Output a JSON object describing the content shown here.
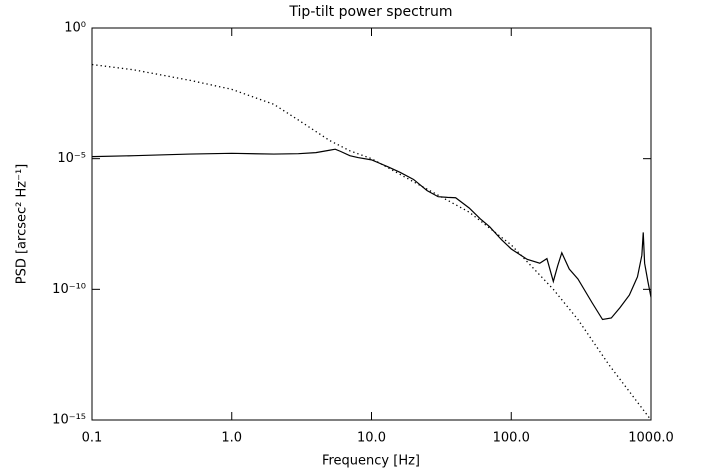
{
  "chart_data": {
    "type": "line",
    "title": "Tip-tilt power spectrum",
    "xlabel": "Frequency [Hz]",
    "ylabel": "PSD [arcsec² Hz⁻¹]",
    "xscale": "log",
    "yscale": "log",
    "xlim": [
      0.1,
      1000
    ],
    "ylim": [
      1e-15,
      1
    ],
    "xticks": [
      0.1,
      {
        "value": 1,
        "label": "1.0"
      },
      {
        "value": 10,
        "label": "10.0"
      },
      {
        "value": 100,
        "label": "100.0"
      },
      {
        "value": 1000,
        "label": "1000.0"
      }
    ],
    "yticks": [
      {
        "value": 1e-15,
        "label": "10⁻¹⁵"
      },
      {
        "value": 1e-10,
        "label": "10⁻¹⁰"
      },
      {
        "value": 1e-05,
        "label": "10⁻⁵"
      },
      {
        "value": 1,
        "label": "10⁰"
      }
    ],
    "series": [
      {
        "color": "#000000",
        "style": "solid",
        "x": [
          0.1,
          0.2,
          0.5,
          1,
          2,
          3,
          4,
          5,
          5.5,
          6,
          7,
          8,
          10,
          13,
          16,
          20,
          25,
          30,
          35,
          40,
          50,
          60,
          70,
          85,
          100,
          130,
          160,
          180,
          200,
          215,
          230,
          260,
          300,
          380,
          450,
          520,
          600,
          700,
          800,
          860,
          880,
          900,
          950,
          1000
        ],
        "values": [
          1.2e-05,
          1.3e-05,
          1.5e-05,
          1.6e-05,
          1.5e-05,
          1.55e-05,
          1.7e-05,
          2.1e-05,
          2.3e-05,
          1.9e-05,
          1.3e-05,
          1.1e-05,
          9e-06,
          5e-06,
          3e-06,
          1.6e-06,
          6e-07,
          3.5e-07,
          3.3e-07,
          3.2e-07,
          1.3e-07,
          5e-08,
          2.5e-08,
          8e-09,
          3.5e-09,
          1.4e-09,
          1e-09,
          1.5e-09,
          2e-10,
          8e-10,
          2.5e-09,
          6e-10,
          2.5e-10,
          3e-11,
          7e-12,
          8e-12,
          2e-11,
          6e-11,
          3e-10,
          2e-09,
          1.5e-08,
          1e-09,
          2e-10,
          5e-11
        ]
      },
      {
        "color": "#000000",
        "style": "dotted",
        "x": [
          0.1,
          0.2,
          0.5,
          1,
          2,
          3,
          5,
          7,
          10,
          20,
          30,
          50,
          100,
          200,
          300,
          500,
          1000
        ],
        "values": [
          0.04,
          0.025,
          0.01,
          0.0045,
          0.0012,
          0.0003,
          5e-05,
          2e-05,
          1e-05,
          1.3e-06,
          4e-07,
          9e-08,
          5e-09,
          1e-10,
          7e-12,
          1.3e-13,
          1e-15
        ]
      }
    ]
  }
}
